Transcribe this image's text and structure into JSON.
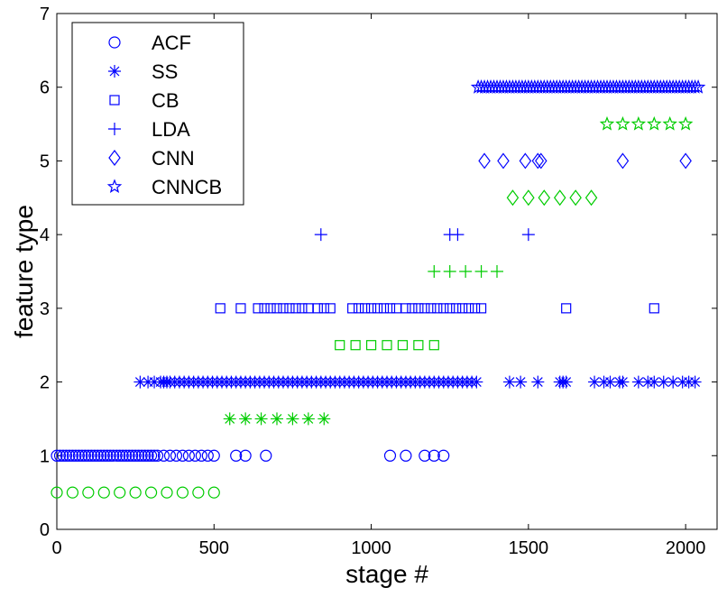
{
  "chart_data": {
    "type": "scatter",
    "xlabel": "stage #",
    "ylabel": "feature type",
    "xlim": [
      0,
      2100
    ],
    "ylim": [
      0,
      7
    ],
    "xticks": [
      0,
      500,
      1000,
      1500,
      2000
    ],
    "yticks": [
      0,
      1,
      2,
      3,
      4,
      5,
      6,
      7
    ],
    "grid": false,
    "legend_position": "top-left",
    "legend": [
      "ACF",
      "SS",
      "CB",
      "LDA",
      "CNN",
      "CNNCB"
    ],
    "series": [
      {
        "name": "ACF",
        "marker": "circle",
        "color": "#0000ff",
        "points": [
          [
            0,
            1
          ],
          [
            10,
            1
          ],
          [
            20,
            1
          ],
          [
            30,
            1
          ],
          [
            40,
            1
          ],
          [
            50,
            1
          ],
          [
            60,
            1
          ],
          [
            70,
            1
          ],
          [
            80,
            1
          ],
          [
            90,
            1
          ],
          [
            100,
            1
          ],
          [
            110,
            1
          ],
          [
            120,
            1
          ],
          [
            130,
            1
          ],
          [
            140,
            1
          ],
          [
            150,
            1
          ],
          [
            160,
            1
          ],
          [
            170,
            1
          ],
          [
            180,
            1
          ],
          [
            190,
            1
          ],
          [
            200,
            1
          ],
          [
            210,
            1
          ],
          [
            220,
            1
          ],
          [
            230,
            1
          ],
          [
            240,
            1
          ],
          [
            250,
            1
          ],
          [
            260,
            1
          ],
          [
            270,
            1
          ],
          [
            280,
            1
          ],
          [
            290,
            1
          ],
          [
            300,
            1
          ],
          [
            310,
            1
          ],
          [
            320,
            1
          ],
          [
            340,
            1
          ],
          [
            360,
            1
          ],
          [
            380,
            1
          ],
          [
            400,
            1
          ],
          [
            420,
            1
          ],
          [
            440,
            1
          ],
          [
            460,
            1
          ],
          [
            480,
            1
          ],
          [
            500,
            1
          ],
          [
            570,
            1
          ],
          [
            600,
            1
          ],
          [
            665,
            1
          ],
          [
            1060,
            1
          ],
          [
            1110,
            1
          ],
          [
            1170,
            1
          ],
          [
            1200,
            1
          ],
          [
            1230,
            1
          ]
        ]
      },
      {
        "name": "",
        "marker": "circle",
        "color": "#00cc00",
        "points": [
          [
            0,
            0.5
          ],
          [
            50,
            0.5
          ],
          [
            100,
            0.5
          ],
          [
            150,
            0.5
          ],
          [
            200,
            0.5
          ],
          [
            250,
            0.5
          ],
          [
            300,
            0.5
          ],
          [
            350,
            0.5
          ],
          [
            400,
            0.5
          ],
          [
            450,
            0.5
          ],
          [
            500,
            0.5
          ]
        ]
      },
      {
        "name": "SS",
        "marker": "asterisk",
        "color": "#0000ff",
        "points": [
          [
            265,
            2
          ],
          [
            290,
            2
          ],
          [
            310,
            2
          ],
          [
            330,
            2
          ],
          [
            340,
            2
          ],
          [
            350,
            2
          ],
          [
            360,
            2
          ],
          [
            375,
            2
          ],
          [
            390,
            2
          ],
          [
            405,
            2
          ],
          [
            420,
            2
          ],
          [
            435,
            2
          ],
          [
            450,
            2
          ],
          [
            465,
            2
          ],
          [
            480,
            2
          ],
          [
            495,
            2
          ],
          [
            510,
            2
          ],
          [
            525,
            2
          ],
          [
            540,
            2
          ],
          [
            555,
            2
          ],
          [
            570,
            2
          ],
          [
            585,
            2
          ],
          [
            600,
            2
          ],
          [
            615,
            2
          ],
          [
            630,
            2
          ],
          [
            645,
            2
          ],
          [
            660,
            2
          ],
          [
            675,
            2
          ],
          [
            690,
            2
          ],
          [
            705,
            2
          ],
          [
            720,
            2
          ],
          [
            735,
            2
          ],
          [
            750,
            2
          ],
          [
            765,
            2
          ],
          [
            780,
            2
          ],
          [
            795,
            2
          ],
          [
            810,
            2
          ],
          [
            825,
            2
          ],
          [
            840,
            2
          ],
          [
            855,
            2
          ],
          [
            870,
            2
          ],
          [
            885,
            2
          ],
          [
            900,
            2
          ],
          [
            915,
            2
          ],
          [
            930,
            2
          ],
          [
            945,
            2
          ],
          [
            960,
            2
          ],
          [
            975,
            2
          ],
          [
            990,
            2
          ],
          [
            1005,
            2
          ],
          [
            1020,
            2
          ],
          [
            1035,
            2
          ],
          [
            1050,
            2
          ],
          [
            1065,
            2
          ],
          [
            1080,
            2
          ],
          [
            1095,
            2
          ],
          [
            1110,
            2
          ],
          [
            1125,
            2
          ],
          [
            1140,
            2
          ],
          [
            1155,
            2
          ],
          [
            1170,
            2
          ],
          [
            1185,
            2
          ],
          [
            1200,
            2
          ],
          [
            1215,
            2
          ],
          [
            1230,
            2
          ],
          [
            1245,
            2
          ],
          [
            1260,
            2
          ],
          [
            1275,
            2
          ],
          [
            1290,
            2
          ],
          [
            1305,
            2
          ],
          [
            1320,
            2
          ],
          [
            1335,
            2
          ],
          [
            1440,
            2
          ],
          [
            1475,
            2
          ],
          [
            1530,
            2
          ],
          [
            1600,
            2
          ],
          [
            1610,
            2
          ],
          [
            1620,
            2
          ],
          [
            1710,
            2
          ],
          [
            1740,
            2
          ],
          [
            1760,
            2
          ],
          [
            1790,
            2
          ],
          [
            1800,
            2
          ],
          [
            1850,
            2
          ],
          [
            1880,
            2
          ],
          [
            1900,
            2
          ],
          [
            1930,
            2
          ],
          [
            1960,
            2
          ],
          [
            1990,
            2
          ],
          [
            2010,
            2
          ],
          [
            2030,
            2
          ]
        ]
      },
      {
        "name": "",
        "marker": "asterisk",
        "color": "#00cc00",
        "points": [
          [
            550,
            1.5
          ],
          [
            600,
            1.5
          ],
          [
            650,
            1.5
          ],
          [
            700,
            1.5
          ],
          [
            750,
            1.5
          ],
          [
            800,
            1.5
          ],
          [
            850,
            1.5
          ]
        ]
      },
      {
        "name": "CB",
        "marker": "square",
        "color": "#0000ff",
        "points": [
          [
            520,
            3
          ],
          [
            585,
            3
          ],
          [
            640,
            3
          ],
          [
            660,
            3
          ],
          [
            680,
            3
          ],
          [
            700,
            3
          ],
          [
            720,
            3
          ],
          [
            740,
            3
          ],
          [
            760,
            3
          ],
          [
            780,
            3
          ],
          [
            800,
            3
          ],
          [
            830,
            3
          ],
          [
            850,
            3
          ],
          [
            870,
            3
          ],
          [
            940,
            3
          ],
          [
            960,
            3
          ],
          [
            980,
            3
          ],
          [
            1000,
            3
          ],
          [
            1020,
            3
          ],
          [
            1040,
            3
          ],
          [
            1060,
            3
          ],
          [
            1080,
            3
          ],
          [
            1110,
            3
          ],
          [
            1130,
            3
          ],
          [
            1150,
            3
          ],
          [
            1170,
            3
          ],
          [
            1190,
            3
          ],
          [
            1210,
            3
          ],
          [
            1230,
            3
          ],
          [
            1250,
            3
          ],
          [
            1270,
            3
          ],
          [
            1290,
            3
          ],
          [
            1310,
            3
          ],
          [
            1330,
            3
          ],
          [
            1350,
            3
          ],
          [
            1620,
            3
          ],
          [
            1900,
            3
          ]
        ]
      },
      {
        "name": "",
        "marker": "square",
        "color": "#00cc00",
        "points": [
          [
            900,
            2.5
          ],
          [
            950,
            2.5
          ],
          [
            1000,
            2.5
          ],
          [
            1050,
            2.5
          ],
          [
            1100,
            2.5
          ],
          [
            1150,
            2.5
          ],
          [
            1200,
            2.5
          ]
        ]
      },
      {
        "name": "LDA",
        "marker": "plus",
        "color": "#0000ff",
        "points": [
          [
            840,
            4
          ],
          [
            1250,
            4
          ],
          [
            1275,
            4
          ],
          [
            1500,
            4
          ]
        ]
      },
      {
        "name": "",
        "marker": "plus",
        "color": "#00cc00",
        "points": [
          [
            1200,
            3.5
          ],
          [
            1250,
            3.5
          ],
          [
            1300,
            3.5
          ],
          [
            1350,
            3.5
          ],
          [
            1400,
            3.5
          ]
        ]
      },
      {
        "name": "CNN",
        "marker": "diamond",
        "color": "#0000ff",
        "points": [
          [
            1360,
            5
          ],
          [
            1420,
            5
          ],
          [
            1490,
            5
          ],
          [
            1530,
            5
          ],
          [
            1540,
            5
          ],
          [
            1800,
            5
          ],
          [
            2000,
            5
          ]
        ]
      },
      {
        "name": "",
        "marker": "diamond",
        "color": "#00cc00",
        "points": [
          [
            1450,
            4.5
          ],
          [
            1500,
            4.5
          ],
          [
            1550,
            4.5
          ],
          [
            1600,
            4.5
          ],
          [
            1650,
            4.5
          ],
          [
            1700,
            4.5
          ]
        ]
      },
      {
        "name": "CNNCB",
        "marker": "star",
        "color": "#0000ff",
        "points": [
          [
            1340,
            6
          ],
          [
            1350,
            6
          ],
          [
            1360,
            6
          ],
          [
            1370,
            6
          ],
          [
            1380,
            6
          ],
          [
            1390,
            6
          ],
          [
            1400,
            6
          ],
          [
            1410,
            6
          ],
          [
            1420,
            6
          ],
          [
            1430,
            6
          ],
          [
            1440,
            6
          ],
          [
            1450,
            6
          ],
          [
            1460,
            6
          ],
          [
            1470,
            6
          ],
          [
            1480,
            6
          ],
          [
            1490,
            6
          ],
          [
            1500,
            6
          ],
          [
            1510,
            6
          ],
          [
            1520,
            6
          ],
          [
            1530,
            6
          ],
          [
            1540,
            6
          ],
          [
            1550,
            6
          ],
          [
            1560,
            6
          ],
          [
            1570,
            6
          ],
          [
            1580,
            6
          ],
          [
            1590,
            6
          ],
          [
            1600,
            6
          ],
          [
            1610,
            6
          ],
          [
            1620,
            6
          ],
          [
            1630,
            6
          ],
          [
            1640,
            6
          ],
          [
            1650,
            6
          ],
          [
            1660,
            6
          ],
          [
            1670,
            6
          ],
          [
            1680,
            6
          ],
          [
            1690,
            6
          ],
          [
            1700,
            6
          ],
          [
            1710,
            6
          ],
          [
            1720,
            6
          ],
          [
            1730,
            6
          ],
          [
            1740,
            6
          ],
          [
            1750,
            6
          ],
          [
            1760,
            6
          ],
          [
            1770,
            6
          ],
          [
            1780,
            6
          ],
          [
            1790,
            6
          ],
          [
            1800,
            6
          ],
          [
            1810,
            6
          ],
          [
            1820,
            6
          ],
          [
            1830,
            6
          ],
          [
            1840,
            6
          ],
          [
            1850,
            6
          ],
          [
            1860,
            6
          ],
          [
            1870,
            6
          ],
          [
            1880,
            6
          ],
          [
            1890,
            6
          ],
          [
            1900,
            6
          ],
          [
            1910,
            6
          ],
          [
            1920,
            6
          ],
          [
            1930,
            6
          ],
          [
            1940,
            6
          ],
          [
            1950,
            6
          ],
          [
            1960,
            6
          ],
          [
            1970,
            6
          ],
          [
            1980,
            6
          ],
          [
            1990,
            6
          ],
          [
            2000,
            6
          ],
          [
            2010,
            6
          ],
          [
            2020,
            6
          ],
          [
            2030,
            6
          ],
          [
            2040,
            6
          ]
        ]
      },
      {
        "name": "",
        "marker": "star",
        "color": "#00cc00",
        "points": [
          [
            1750,
            5.5
          ],
          [
            1800,
            5.5
          ],
          [
            1850,
            5.5
          ],
          [
            1900,
            5.5
          ],
          [
            1950,
            5.5
          ],
          [
            2000,
            5.5
          ]
        ]
      }
    ]
  }
}
